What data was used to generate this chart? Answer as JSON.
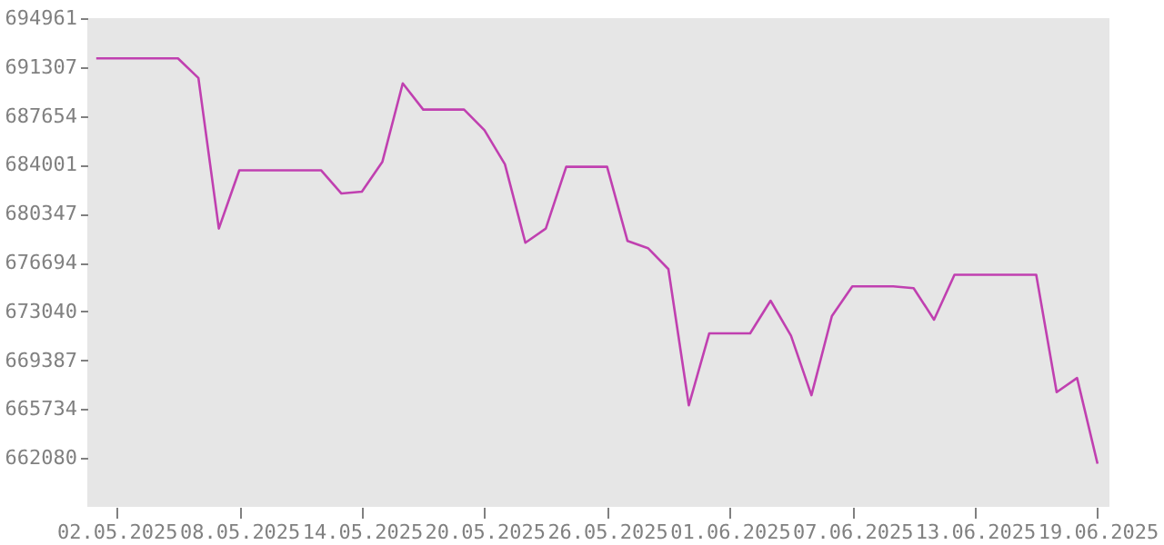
{
  "chart_data": {
    "type": "line",
    "x": [
      "2025-05-01",
      "2025-05-02",
      "2025-05-03",
      "2025-05-04",
      "2025-05-05",
      "2025-05-06",
      "2025-05-07",
      "2025-05-08",
      "2025-05-09",
      "2025-05-10",
      "2025-05-11",
      "2025-05-12",
      "2025-05-13",
      "2025-05-14",
      "2025-05-15",
      "2025-05-16",
      "2025-05-17",
      "2025-05-18",
      "2025-05-19",
      "2025-05-20",
      "2025-05-21",
      "2025-05-22",
      "2025-05-23",
      "2025-05-24",
      "2025-05-25",
      "2025-05-26",
      "2025-05-27",
      "2025-05-28",
      "2025-05-29",
      "2025-05-30",
      "2025-05-31",
      "2025-06-01",
      "2025-06-02",
      "2025-06-03",
      "2025-06-04",
      "2025-06-05",
      "2025-06-06",
      "2025-06-07",
      "2025-06-08",
      "2025-06-09",
      "2025-06-10",
      "2025-06-11",
      "2025-06-12",
      "2025-06-13",
      "2025-06-14",
      "2025-06-15",
      "2025-06-16",
      "2025-06-17",
      "2025-06-18",
      "2025-06-19"
    ],
    "series": [
      {
        "color": "#c040b0",
        "values": [
          691960,
          691960,
          691960,
          691960,
          691960,
          690490,
          679230,
          683590,
          683590,
          683590,
          683590,
          683590,
          681850,
          681990,
          684210,
          690090,
          688130,
          688130,
          688130,
          686580,
          684040,
          678170,
          679230,
          683850,
          683850,
          683850,
          678300,
          677770,
          676200,
          666020,
          671400,
          671400,
          671400,
          673840,
          671220,
          666770,
          672690,
          674910,
          674910,
          674910,
          674780,
          672420,
          675780,
          675780,
          675780,
          675780,
          675780,
          667000,
          668060,
          661650
        ]
      }
    ],
    "xlim": [
      "2025-04-30T13:30",
      "2025-06-19T14:00"
    ],
    "xticks": [
      {
        "value": "2025-05-02",
        "label": "02.05.2025"
      },
      {
        "value": "2025-05-08",
        "label": "08.05.2025"
      },
      {
        "value": "2025-05-14",
        "label": "14.05.2025"
      },
      {
        "value": "2025-05-20",
        "label": "20.05.2025"
      },
      {
        "value": "2025-05-26",
        "label": "26.05.2025"
      },
      {
        "value": "2025-06-01",
        "label": "01.06.2025"
      },
      {
        "value": "2025-06-07",
        "label": "07.06.2025"
      },
      {
        "value": "2025-06-13",
        "label": "13.06.2025"
      },
      {
        "value": "2025-06-19",
        "label": "19.06.2025"
      }
    ],
    "ylim": [
      658427,
      694961
    ],
    "yticks": [
      662080,
      665734,
      669387,
      673040,
      676694,
      680347,
      684001,
      687654,
      691307,
      694961
    ],
    "grid": false,
    "marker": "none",
    "line_style": "solid"
  }
}
